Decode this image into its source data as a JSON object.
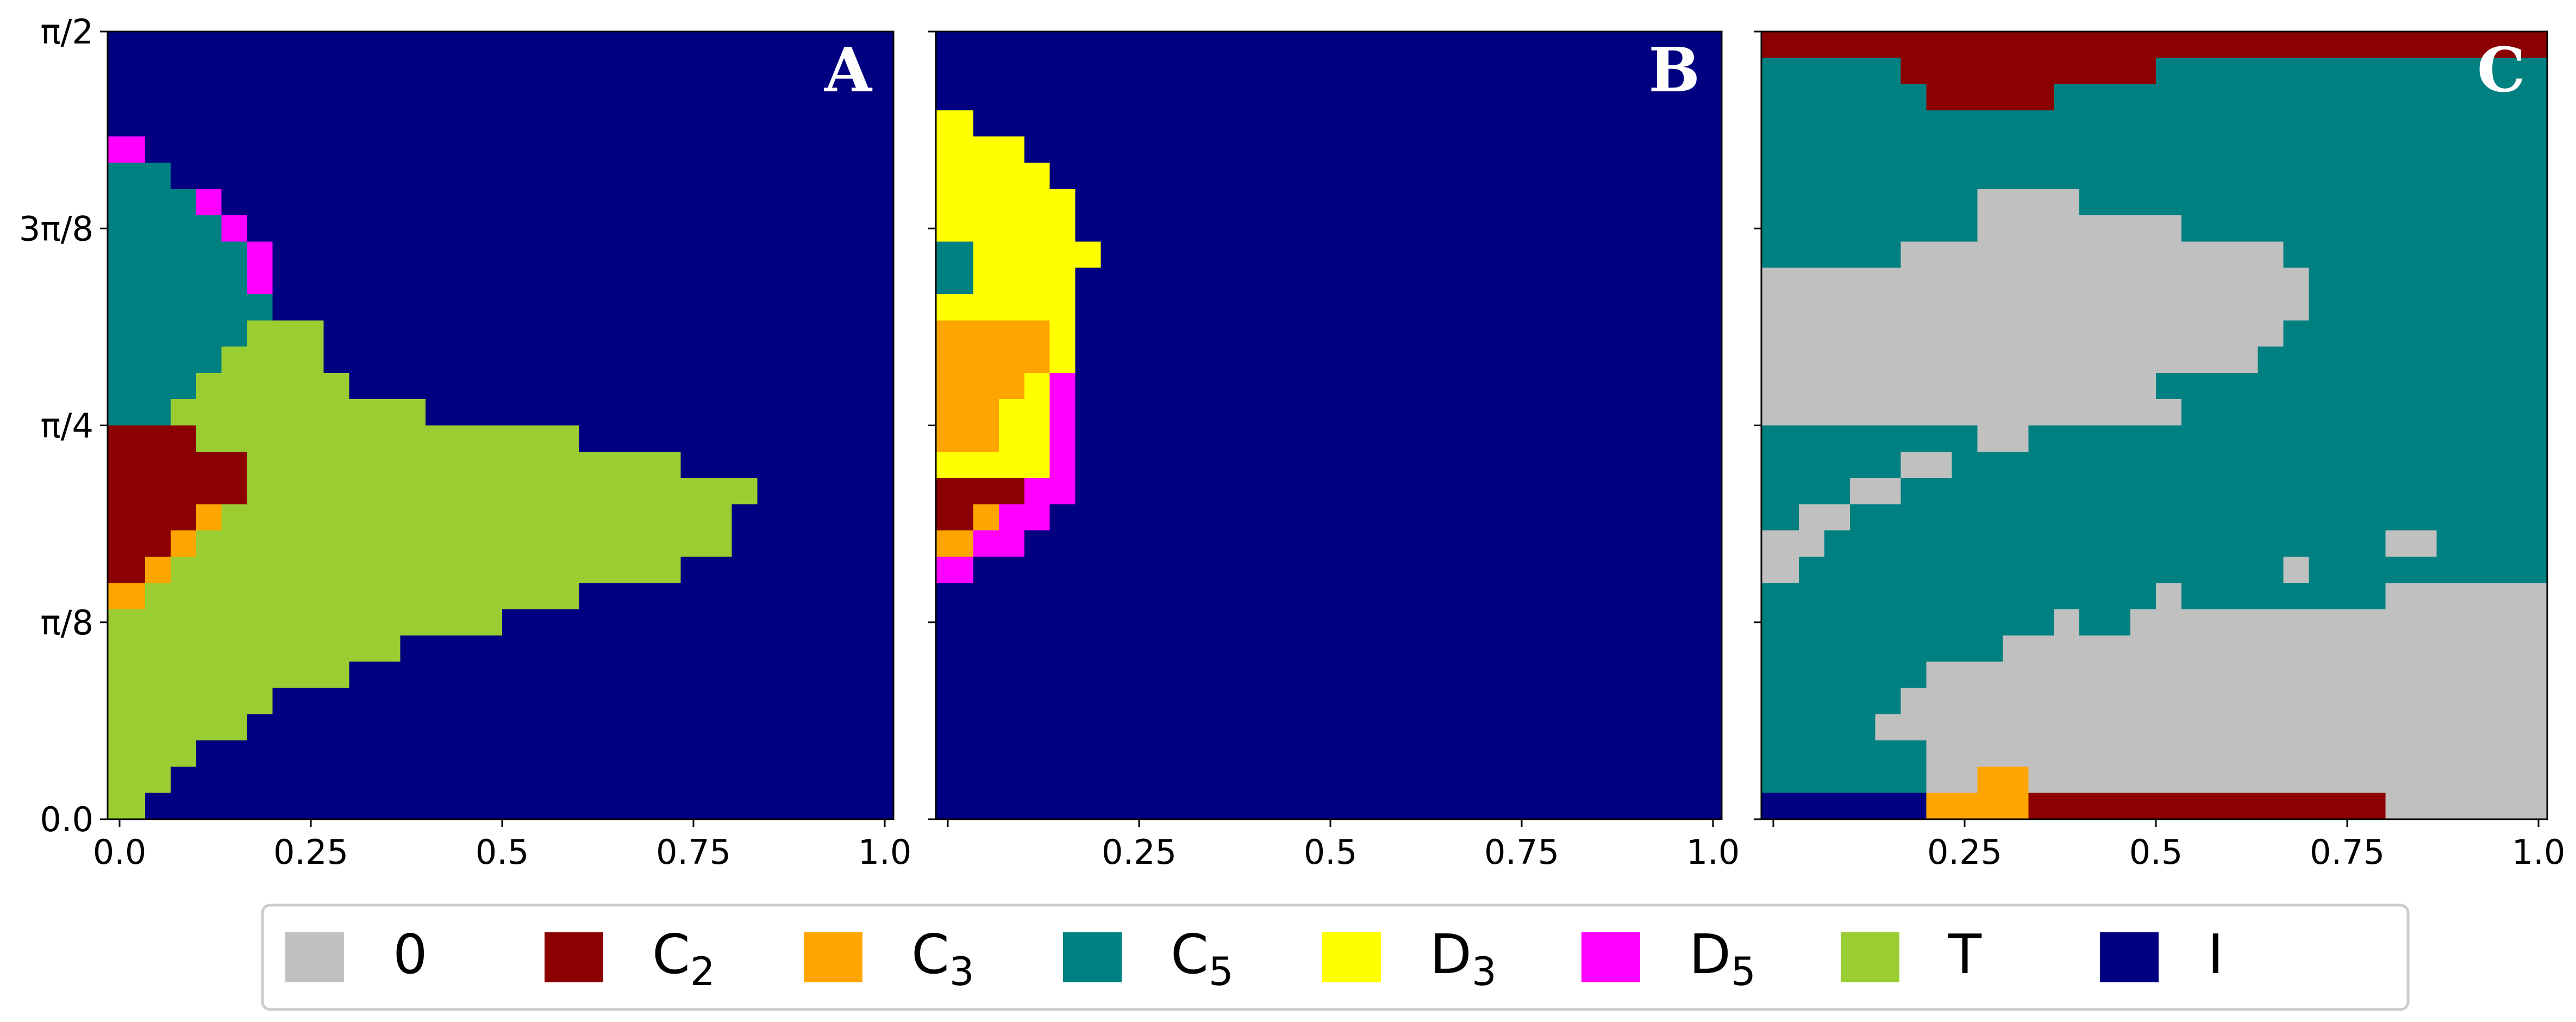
{
  "chart_data": {
    "type": "heatmap",
    "colors": {
      "0": "#c0c0c0",
      "C2": "#8b0000",
      "C3": "#ffa500",
      "C5": "#008080",
      "D3": "#ffff00",
      "D5": "#ff00ff",
      "T": "#9acd32",
      "I": "#000080"
    },
    "legend": {
      "placement": "bottom-center",
      "entries": [
        {
          "key": "0",
          "label": "0",
          "sub": ""
        },
        {
          "key": "C2",
          "label": "C",
          "sub": "2"
        },
        {
          "key": "C3",
          "label": "C",
          "sub": "3"
        },
        {
          "key": "C5",
          "label": "C",
          "sub": "5"
        },
        {
          "key": "D3",
          "label": "D",
          "sub": "3"
        },
        {
          "key": "D5",
          "label": "D",
          "sub": "5"
        },
        {
          "key": "T",
          "label": "T",
          "sub": ""
        },
        {
          "key": "I",
          "label": "I",
          "sub": ""
        }
      ]
    },
    "y_ticks": [
      {
        "value": 1.5708,
        "label": "π/2"
      },
      {
        "value": 1.1781,
        "label": "3π/8"
      },
      {
        "value": 0.7854,
        "label": "π/4"
      },
      {
        "value": 0.3927,
        "label": "π/8"
      },
      {
        "value": 0.0,
        "label": "0.0"
      }
    ],
    "x_ticks_full": [
      "0.0",
      "0.25",
      "0.5",
      "0.75",
      "1.0"
    ],
    "x_ticks_partial": [
      "",
      "0.25",
      "0.5",
      "0.75",
      "1.0"
    ],
    "xlim": [
      0,
      1
    ],
    "ylim": [
      0,
      1.5708
    ],
    "grid": false,
    "cell_dx": 0.0333,
    "cell_dy": 0.0524,
    "panels": [
      {
        "letter": "A",
        "background": "I",
        "regions": [
          {
            "cls": "T",
            "x0": 0.0,
            "x1": 0.0333,
            "y0": 0.0,
            "y1": 0.0524
          },
          {
            "cls": "T",
            "x0": 0.0,
            "x1": 0.0667,
            "y0": 0.0524,
            "y1": 0.1047
          },
          {
            "cls": "T",
            "x0": 0.0,
            "x1": 0.1,
            "y0": 0.1047,
            "y1": 0.157
          },
          {
            "cls": "T",
            "x0": 0.0,
            "x1": 0.1667,
            "y0": 0.157,
            "y1": 0.2094
          },
          {
            "cls": "T",
            "x0": 0.0,
            "x1": 0.2,
            "y0": 0.2094,
            "y1": 0.2618
          },
          {
            "cls": "T",
            "x0": 0.0,
            "x1": 0.3,
            "y0": 0.2618,
            "y1": 0.3142
          },
          {
            "cls": "T",
            "x0": 0.0,
            "x1": 0.3667,
            "y0": 0.3142,
            "y1": 0.3665
          },
          {
            "cls": "T",
            "x0": 0.0,
            "x1": 0.5,
            "y0": 0.3665,
            "y1": 0.4189
          },
          {
            "cls": "C3",
            "x0": 0.0,
            "x1": 0.0333,
            "y0": 0.4189,
            "y1": 0.4712
          },
          {
            "cls": "T",
            "x0": 0.0333,
            "x1": 0.6,
            "y0": 0.4189,
            "y1": 0.4712
          },
          {
            "cls": "C2",
            "x0": 0.0,
            "x1": 0.0333,
            "y0": 0.4712,
            "y1": 0.5236
          },
          {
            "cls": "C3",
            "x0": 0.0333,
            "x1": 0.0667,
            "y0": 0.4712,
            "y1": 0.5236
          },
          {
            "cls": "T",
            "x0": 0.0667,
            "x1": 0.7333,
            "y0": 0.4712,
            "y1": 0.5236
          },
          {
            "cls": "C2",
            "x0": 0.0,
            "x1": 0.0667,
            "y0": 0.5236,
            "y1": 0.576
          },
          {
            "cls": "C3",
            "x0": 0.0667,
            "x1": 0.1,
            "y0": 0.5236,
            "y1": 0.576
          },
          {
            "cls": "T",
            "x0": 0.1,
            "x1": 0.8,
            "y0": 0.5236,
            "y1": 0.576
          },
          {
            "cls": "C2",
            "x0": 0.0,
            "x1": 0.1,
            "y0": 0.576,
            "y1": 0.6283
          },
          {
            "cls": "C3",
            "x0": 0.1,
            "x1": 0.1333,
            "y0": 0.576,
            "y1": 0.6283
          },
          {
            "cls": "T",
            "x0": 0.1333,
            "x1": 0.8,
            "y0": 0.576,
            "y1": 0.6283
          },
          {
            "cls": "C2",
            "x0": 0.0,
            "x1": 0.1667,
            "y0": 0.6283,
            "y1": 0.6807
          },
          {
            "cls": "T",
            "x0": 0.1667,
            "x1": 0.8333,
            "y0": 0.6283,
            "y1": 0.6807
          },
          {
            "cls": "C2",
            "x0": 0.0,
            "x1": 0.1667,
            "y0": 0.6807,
            "y1": 0.733
          },
          {
            "cls": "T",
            "x0": 0.1667,
            "x1": 0.7333,
            "y0": 0.6807,
            "y1": 0.733
          },
          {
            "cls": "C2",
            "x0": 0.0,
            "x1": 0.1,
            "y0": 0.733,
            "y1": 0.7854
          },
          {
            "cls": "T",
            "x0": 0.1,
            "x1": 0.6,
            "y0": 0.733,
            "y1": 0.7854
          },
          {
            "cls": "C5",
            "x0": 0.0,
            "x1": 0.0667,
            "y0": 0.7854,
            "y1": 0.8378
          },
          {
            "cls": "T",
            "x0": 0.0667,
            "x1": 0.4,
            "y0": 0.7854,
            "y1": 0.8378
          },
          {
            "cls": "C5",
            "x0": 0.0,
            "x1": 0.1,
            "y0": 0.8378,
            "y1": 0.8901
          },
          {
            "cls": "T",
            "x0": 0.1,
            "x1": 0.3,
            "y0": 0.8378,
            "y1": 0.8901
          },
          {
            "cls": "C5",
            "x0": 0.0,
            "x1": 0.1333,
            "y0": 0.8901,
            "y1": 0.9425
          },
          {
            "cls": "T",
            "x0": 0.1333,
            "x1": 0.2667,
            "y0": 0.8901,
            "y1": 0.9425
          },
          {
            "cls": "C5",
            "x0": 0.0,
            "x1": 0.1667,
            "y0": 0.9425,
            "y1": 0.9948
          },
          {
            "cls": "T",
            "x0": 0.1667,
            "x1": 0.2667,
            "y0": 0.9425,
            "y1": 0.9948
          },
          {
            "cls": "C5",
            "x0": 0.0,
            "x1": 0.2,
            "y0": 0.9948,
            "y1": 1.0472
          },
          {
            "cls": "C5",
            "x0": 0.0,
            "x1": 0.1667,
            "y0": 1.0472,
            "y1": 1.0996
          },
          {
            "cls": "D5",
            "x0": 0.1667,
            "x1": 0.2,
            "y0": 1.0472,
            "y1": 1.0996
          },
          {
            "cls": "C5",
            "x0": 0.0,
            "x1": 0.1667,
            "y0": 1.0996,
            "y1": 1.1519
          },
          {
            "cls": "D5",
            "x0": 0.1667,
            "x1": 0.2,
            "y0": 1.0996,
            "y1": 1.1519
          },
          {
            "cls": "C5",
            "x0": 0.0,
            "x1": 0.1333,
            "y0": 1.1519,
            "y1": 1.2043
          },
          {
            "cls": "D5",
            "x0": 0.1333,
            "x1": 0.1667,
            "y0": 1.1519,
            "y1": 1.2043
          },
          {
            "cls": "C5",
            "x0": 0.0,
            "x1": 0.1,
            "y0": 1.2043,
            "y1": 1.2566
          },
          {
            "cls": "D5",
            "x0": 0.1,
            "x1": 0.1333,
            "y0": 1.2043,
            "y1": 1.2566
          },
          {
            "cls": "C5",
            "x0": 0.0,
            "x1": 0.0667,
            "y0": 1.2566,
            "y1": 1.309
          },
          {
            "cls": "D5",
            "x0": 0.0,
            "x1": 0.0333,
            "y0": 1.309,
            "y1": 1.3614
          }
        ]
      },
      {
        "letter": "B",
        "background": "I",
        "regions": [
          {
            "cls": "D5",
            "x0": 0.0,
            "x1": 0.0333,
            "y0": 0.4712,
            "y1": 0.5236
          },
          {
            "cls": "C3",
            "x0": 0.0,
            "x1": 0.0333,
            "y0": 0.5236,
            "y1": 0.576
          },
          {
            "cls": "D5",
            "x0": 0.0333,
            "x1": 0.1,
            "y0": 0.5236,
            "y1": 0.576
          },
          {
            "cls": "C2",
            "x0": 0.0,
            "x1": 0.0333,
            "y0": 0.576,
            "y1": 0.6283
          },
          {
            "cls": "C3",
            "x0": 0.0333,
            "x1": 0.0667,
            "y0": 0.576,
            "y1": 0.6283
          },
          {
            "cls": "D5",
            "x0": 0.0667,
            "x1": 0.1333,
            "y0": 0.576,
            "y1": 0.6283
          },
          {
            "cls": "C2",
            "x0": 0.0,
            "x1": 0.1,
            "y0": 0.6283,
            "y1": 0.6807
          },
          {
            "cls": "D5",
            "x0": 0.1,
            "x1": 0.1667,
            "y0": 0.6283,
            "y1": 0.6807
          },
          {
            "cls": "D3",
            "x0": 0.0,
            "x1": 0.1333,
            "y0": 0.6807,
            "y1": 0.733
          },
          {
            "cls": "D5",
            "x0": 0.1333,
            "x1": 0.1667,
            "y0": 0.6807,
            "y1": 0.733
          },
          {
            "cls": "C3",
            "x0": 0.0,
            "x1": 0.0667,
            "y0": 0.733,
            "y1": 0.7854
          },
          {
            "cls": "D3",
            "x0": 0.0667,
            "x1": 0.1333,
            "y0": 0.733,
            "y1": 0.7854
          },
          {
            "cls": "D5",
            "x0": 0.1333,
            "x1": 0.1667,
            "y0": 0.733,
            "y1": 0.7854
          },
          {
            "cls": "C3",
            "x0": 0.0,
            "x1": 0.0667,
            "y0": 0.7854,
            "y1": 0.8378
          },
          {
            "cls": "D3",
            "x0": 0.0667,
            "x1": 0.1333,
            "y0": 0.7854,
            "y1": 0.8378
          },
          {
            "cls": "D5",
            "x0": 0.1333,
            "x1": 0.1667,
            "y0": 0.7854,
            "y1": 0.8378
          },
          {
            "cls": "C3",
            "x0": 0.0,
            "x1": 0.1,
            "y0": 0.8378,
            "y1": 0.8901
          },
          {
            "cls": "D3",
            "x0": 0.1,
            "x1": 0.1333,
            "y0": 0.8378,
            "y1": 0.8901
          },
          {
            "cls": "D5",
            "x0": 0.1333,
            "x1": 0.1667,
            "y0": 0.8378,
            "y1": 0.8901
          },
          {
            "cls": "C3",
            "x0": 0.0,
            "x1": 0.1333,
            "y0": 0.8901,
            "y1": 0.9425
          },
          {
            "cls": "D3",
            "x0": 0.1333,
            "x1": 0.1667,
            "y0": 0.8901,
            "y1": 0.9425
          },
          {
            "cls": "C3",
            "x0": 0.0,
            "x1": 0.1333,
            "y0": 0.9425,
            "y1": 0.9948
          },
          {
            "cls": "D3",
            "x0": 0.1333,
            "x1": 0.1667,
            "y0": 0.9425,
            "y1": 0.9948
          },
          {
            "cls": "D3",
            "x0": 0.0,
            "x1": 0.1667,
            "y0": 0.9948,
            "y1": 1.0472
          },
          {
            "cls": "C5",
            "x0": 0.0,
            "x1": 0.0333,
            "y0": 1.0472,
            "y1": 1.0996
          },
          {
            "cls": "D3",
            "x0": 0.0333,
            "x1": 0.1667,
            "y0": 1.0472,
            "y1": 1.0996
          },
          {
            "cls": "C5",
            "x0": 0.0,
            "x1": 0.0333,
            "y0": 1.0996,
            "y1": 1.1519
          },
          {
            "cls": "D3",
            "x0": 0.0333,
            "x1": 0.2,
            "y0": 1.0996,
            "y1": 1.1519
          },
          {
            "cls": "D3",
            "x0": 0.0,
            "x1": 0.1667,
            "y0": 1.1519,
            "y1": 1.2043
          },
          {
            "cls": "D3",
            "x0": 0.0,
            "x1": 0.1667,
            "y0": 1.2043,
            "y1": 1.2566
          },
          {
            "cls": "D3",
            "x0": 0.0,
            "x1": 0.1333,
            "y0": 1.2566,
            "y1": 1.309
          },
          {
            "cls": "D3",
            "x0": 0.0,
            "x1": 0.1,
            "y0": 1.309,
            "y1": 1.3614
          },
          {
            "cls": "D3",
            "x0": 0.0,
            "x1": 0.0333,
            "y0": 1.3614,
            "y1": 1.4137
          }
        ]
      },
      {
        "letter": "C",
        "background": "C5",
        "regions": [
          {
            "cls": "I",
            "x0": 0.0,
            "x1": 0.2,
            "y0": 0.0,
            "y1": 0.0524
          },
          {
            "cls": "C3",
            "x0": 0.2,
            "x1": 0.3333,
            "y0": 0.0,
            "y1": 0.0524
          },
          {
            "cls": "C2",
            "x0": 0.3333,
            "x1": 0.8,
            "y0": 0.0,
            "y1": 0.0524
          },
          {
            "cls": "0",
            "x0": 0.8,
            "x1": 1.0,
            "y0": 0.0,
            "y1": 0.0524
          },
          {
            "cls": "0",
            "x0": 0.2,
            "x1": 0.2667,
            "y0": 0.0524,
            "y1": 0.1047
          },
          {
            "cls": "C3",
            "x0": 0.2667,
            "x1": 0.3333,
            "y0": 0.0524,
            "y1": 0.1047
          },
          {
            "cls": "0",
            "x0": 0.3333,
            "x1": 1.0,
            "y0": 0.0524,
            "y1": 0.1047
          },
          {
            "cls": "0",
            "x0": 0.2,
            "x1": 1.0,
            "y0": 0.1047,
            "y1": 0.157
          },
          {
            "cls": "0",
            "x0": 0.1333,
            "x1": 1.0,
            "y0": 0.157,
            "y1": 0.2094
          },
          {
            "cls": "0",
            "x0": 0.1667,
            "x1": 1.0,
            "y0": 0.2094,
            "y1": 0.2618
          },
          {
            "cls": "0",
            "x0": 0.2,
            "x1": 1.0,
            "y0": 0.2618,
            "y1": 0.3142
          },
          {
            "cls": "0",
            "x0": 0.3,
            "x1": 1.0,
            "y0": 0.3142,
            "y1": 0.3665
          },
          {
            "cls": "0",
            "x0": 0.3667,
            "x1": 0.4,
            "y0": 0.3665,
            "y1": 0.4189
          },
          {
            "cls": "0",
            "x0": 0.4667,
            "x1": 1.0,
            "y0": 0.3665,
            "y1": 0.4189
          },
          {
            "cls": "0",
            "x0": 0.5,
            "x1": 0.5333,
            "y0": 0.4189,
            "y1": 0.4712
          },
          {
            "cls": "0",
            "x0": 0.8,
            "x1": 1.0,
            "y0": 0.4189,
            "y1": 0.4712
          },
          {
            "cls": "0",
            "x0": 0.0,
            "x1": 0.0333,
            "y0": 0.4712,
            "y1": 0.5236
          },
          {
            "cls": "0",
            "x0": 0.6667,
            "x1": 0.7,
            "y0": 0.4712,
            "y1": 0.5236
          },
          {
            "cls": "0",
            "x0": 0.0,
            "x1": 0.0667,
            "y0": 0.5236,
            "y1": 0.576
          },
          {
            "cls": "0",
            "x0": 0.8,
            "x1": 0.8667,
            "y0": 0.5236,
            "y1": 0.576
          },
          {
            "cls": "0",
            "x0": 0.0333,
            "x1": 0.1,
            "y0": 0.576,
            "y1": 0.6283
          },
          {
            "cls": "0",
            "x0": 0.1,
            "x1": 0.1667,
            "y0": 0.6283,
            "y1": 0.6807
          },
          {
            "cls": "0",
            "x0": 0.1667,
            "x1": 0.2333,
            "y0": 0.6807,
            "y1": 0.733
          },
          {
            "cls": "0",
            "x0": 0.2667,
            "x1": 0.3333,
            "y0": 0.733,
            "y1": 0.7854
          },
          {
            "cls": "0",
            "x0": 0.0,
            "x1": 0.5333,
            "y0": 0.7854,
            "y1": 0.8378
          },
          {
            "cls": "0",
            "x0": 0.0,
            "x1": 0.5,
            "y0": 0.8378,
            "y1": 0.8901
          },
          {
            "cls": "0",
            "x0": 0.0,
            "x1": 0.6333,
            "y0": 0.8901,
            "y1": 0.9425
          },
          {
            "cls": "0",
            "x0": 0.0,
            "x1": 0.6667,
            "y0": 0.9425,
            "y1": 0.9948
          },
          {
            "cls": "0",
            "x0": 0.0,
            "x1": 0.7,
            "y0": 0.9948,
            "y1": 1.0472
          },
          {
            "cls": "0",
            "x0": 0.0,
            "x1": 0.7,
            "y0": 1.0472,
            "y1": 1.0996
          },
          {
            "cls": "0",
            "x0": 0.1667,
            "x1": 0.6667,
            "y0": 1.0996,
            "y1": 1.1519
          },
          {
            "cls": "0",
            "x0": 0.2667,
            "x1": 0.5333,
            "y0": 1.1519,
            "y1": 1.2043
          },
          {
            "cls": "0",
            "x0": 0.2667,
            "x1": 0.4,
            "y0": 1.2043,
            "y1": 1.2566
          },
          {
            "cls": "C2",
            "x0": 0.2,
            "x1": 0.3667,
            "y0": 1.4137,
            "y1": 1.4661
          },
          {
            "cls": "C2",
            "x0": 0.1667,
            "x1": 0.5,
            "y0": 1.4661,
            "y1": 1.5184
          },
          {
            "cls": "C2",
            "x0": 0.0,
            "x1": 1.0,
            "y0": 1.5184,
            "y1": 1.5708
          }
        ]
      }
    ]
  }
}
